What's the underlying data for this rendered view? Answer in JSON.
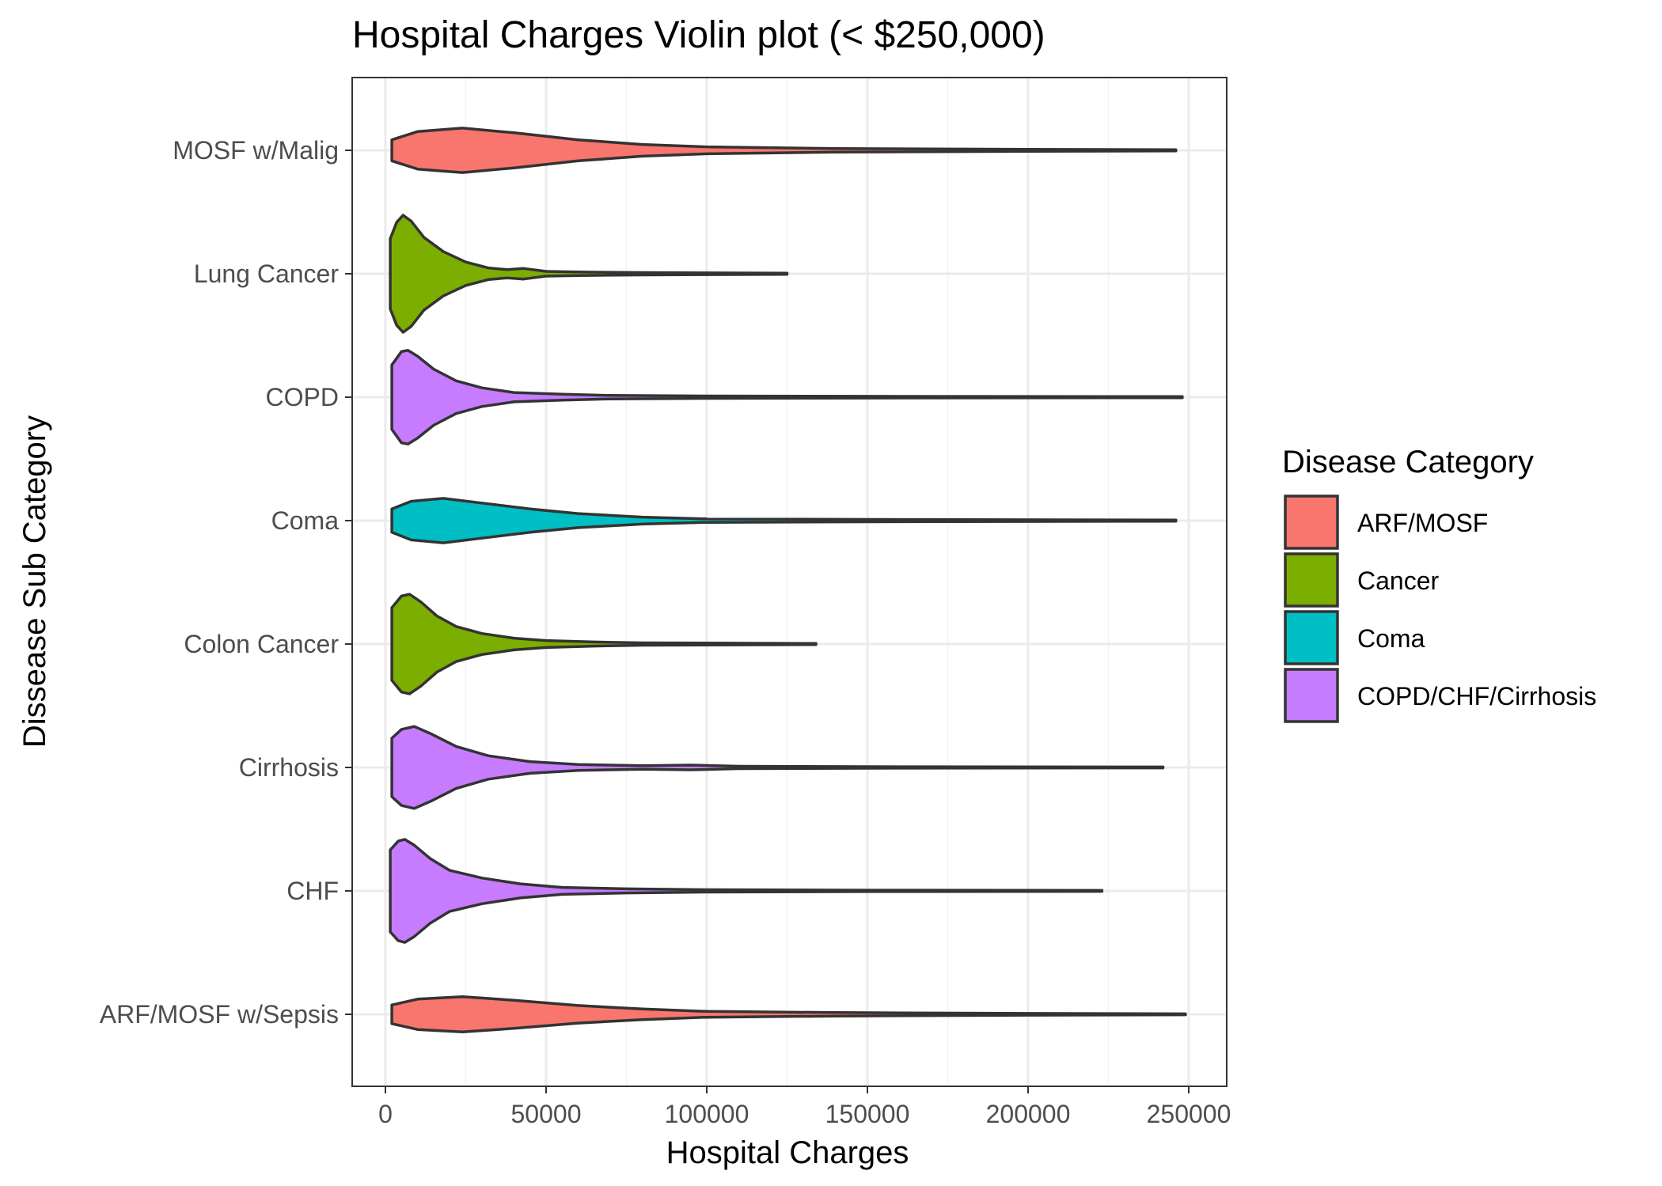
{
  "chart_data": {
    "type": "violin",
    "title": "Hospital Charges Violin plot (< $250,000)",
    "xlabel": "Hospital Charges",
    "ylabel": "Dissease Sub Category",
    "xlim": [
      -10000,
      260000
    ],
    "x_ticks": [
      0,
      50000,
      100000,
      150000,
      200000,
      250000
    ],
    "x_tick_labels": [
      "0",
      "50000",
      "100000",
      "150000",
      "200000",
      "250000"
    ],
    "categories": [
      "MOSF w/Malig",
      "Lung Cancer",
      "COPD",
      "Coma",
      "Colon Cancer",
      "Cirrhosis",
      "CHF",
      "ARF/MOSF w/Sepsis"
    ],
    "grid": true,
    "legend": {
      "title": "Disease Category",
      "position": "right",
      "entries": [
        {
          "label": "ARF/MOSF",
          "color": "#F8766D"
        },
        {
          "label": "Cancer",
          "color": "#7CAE00"
        },
        {
          "label": "Coma",
          "color": "#00BFC4"
        },
        {
          "label": "COPD/CHF/Cirrhosis",
          "color": "#C77CFF"
        }
      ]
    },
    "series": [
      {
        "category": "MOSF w/Malig",
        "group": "ARF/MOSF",
        "min": 2000,
        "max": 246000,
        "profile": [
          [
            2000,
            0.18
          ],
          [
            10000,
            0.32
          ],
          [
            24000,
            0.38
          ],
          [
            40000,
            0.3
          ],
          [
            60000,
            0.18
          ],
          [
            80000,
            0.1
          ],
          [
            100000,
            0.06
          ],
          [
            140000,
            0.03
          ],
          [
            200000,
            0.018
          ],
          [
            246000,
            0.01
          ]
        ]
      },
      {
        "category": "Lung Cancer",
        "group": "Cancer",
        "min": 1500,
        "max": 125000,
        "profile": [
          [
            1500,
            0.6
          ],
          [
            3500,
            0.88
          ],
          [
            5500,
            1.0
          ],
          [
            8000,
            0.9
          ],
          [
            12000,
            0.62
          ],
          [
            18000,
            0.38
          ],
          [
            25000,
            0.2
          ],
          [
            32000,
            0.1
          ],
          [
            38000,
            0.07
          ],
          [
            43000,
            0.09
          ],
          [
            50000,
            0.04
          ],
          [
            60000,
            0.03
          ],
          [
            80000,
            0.02
          ],
          [
            100000,
            0.015
          ],
          [
            125000,
            0.01
          ]
        ]
      },
      {
        "category": "COPD",
        "group": "COPD/CHF/Cirrhosis",
        "min": 2000,
        "max": 248000,
        "profile": [
          [
            2000,
            0.55
          ],
          [
            5000,
            0.78
          ],
          [
            7000,
            0.8
          ],
          [
            10000,
            0.7
          ],
          [
            15000,
            0.48
          ],
          [
            22000,
            0.28
          ],
          [
            30000,
            0.16
          ],
          [
            40000,
            0.08
          ],
          [
            55000,
            0.05
          ],
          [
            70000,
            0.03
          ],
          [
            100000,
            0.02
          ],
          [
            150000,
            0.015
          ],
          [
            248000,
            0.01
          ]
        ]
      },
      {
        "category": "Coma",
        "group": "Coma",
        "min": 2000,
        "max": 246000,
        "profile": [
          [
            2000,
            0.2
          ],
          [
            8000,
            0.33
          ],
          [
            18000,
            0.38
          ],
          [
            30000,
            0.3
          ],
          [
            45000,
            0.2
          ],
          [
            60000,
            0.12
          ],
          [
            80000,
            0.06
          ],
          [
            100000,
            0.03
          ],
          [
            150000,
            0.02
          ],
          [
            246000,
            0.01
          ]
        ]
      },
      {
        "category": "Colon Cancer",
        "group": "Cancer",
        "min": 2000,
        "max": 134000,
        "profile": [
          [
            2000,
            0.62
          ],
          [
            5000,
            0.82
          ],
          [
            7500,
            0.85
          ],
          [
            11000,
            0.72
          ],
          [
            16000,
            0.48
          ],
          [
            22000,
            0.3
          ],
          [
            30000,
            0.18
          ],
          [
            40000,
            0.1
          ],
          [
            50000,
            0.06
          ],
          [
            65000,
            0.035
          ],
          [
            80000,
            0.02
          ],
          [
            134000,
            0.01
          ]
        ]
      },
      {
        "category": "Cirrhosis",
        "group": "COPD/CHF/Cirrhosis",
        "min": 2000,
        "max": 242000,
        "profile": [
          [
            2000,
            0.5
          ],
          [
            5000,
            0.65
          ],
          [
            9000,
            0.7
          ],
          [
            14000,
            0.58
          ],
          [
            22000,
            0.36
          ],
          [
            32000,
            0.2
          ],
          [
            45000,
            0.1
          ],
          [
            60000,
            0.05
          ],
          [
            80000,
            0.03
          ],
          [
            95000,
            0.04
          ],
          [
            110000,
            0.02
          ],
          [
            160000,
            0.012
          ],
          [
            242000,
            0.008
          ]
        ]
      },
      {
        "category": "CHF",
        "group": "COPD/CHF/Cirrhosis",
        "min": 1500,
        "max": 223000,
        "profile": [
          [
            1500,
            0.7
          ],
          [
            4000,
            0.85
          ],
          [
            6000,
            0.88
          ],
          [
            9000,
            0.78
          ],
          [
            14000,
            0.55
          ],
          [
            20000,
            0.35
          ],
          [
            30000,
            0.22
          ],
          [
            42000,
            0.12
          ],
          [
            55000,
            0.06
          ],
          [
            75000,
            0.035
          ],
          [
            100000,
            0.02
          ],
          [
            150000,
            0.012
          ],
          [
            223000,
            0.008
          ]
        ]
      },
      {
        "category": "ARF/MOSF w/Sepsis",
        "group": "ARF/MOSF",
        "min": 2000,
        "max": 249000,
        "profile": [
          [
            2000,
            0.16
          ],
          [
            10000,
            0.26
          ],
          [
            24000,
            0.3
          ],
          [
            40000,
            0.24
          ],
          [
            60000,
            0.15
          ],
          [
            80000,
            0.09
          ],
          [
            100000,
            0.05
          ],
          [
            140000,
            0.03
          ],
          [
            200000,
            0.015
          ],
          [
            249000,
            0.008
          ]
        ]
      }
    ]
  }
}
